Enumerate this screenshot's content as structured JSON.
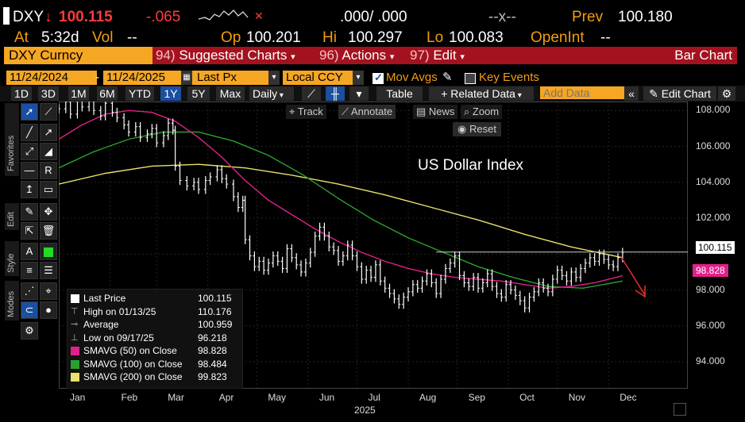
{
  "header": {
    "ticker": "DXY",
    "arrow": "↓",
    "price": "100.115",
    "change": "-.065",
    "bidask": ".000/ .000",
    "size": "--x--",
    "prev_label": "Prev",
    "prev_value": "100.180",
    "at_label": "At",
    "time": "5:32d",
    "vol_label": "Vol",
    "vol_value": "--",
    "op_label": "Op",
    "op_value": "100.201",
    "hi_label": "Hi",
    "hi_value": "100.297",
    "lo_label": "Lo",
    "lo_value": "100.083",
    "oi_label": "OpenInt",
    "oi_value": "--"
  },
  "function_bar": {
    "security": "DXY Curncy",
    "suggested_num": "94)",
    "suggested": "Suggested Charts",
    "actions_num": "96)",
    "actions": "Actions",
    "edit_num": "97)",
    "edit": "Edit",
    "chart_type": "Bar Chart"
  },
  "settings": {
    "start_date": "11/24/2024",
    "end_date": "11/24/2025",
    "field": "Last Px",
    "currency": "Local CCY",
    "mov_avgs": "Mov Avgs",
    "key_events": "Key Events"
  },
  "toolbar": {
    "periods": [
      "1D",
      "3D",
      "1M",
      "6M",
      "YTD",
      "1Y",
      "5Y",
      "Max"
    ],
    "selected_period": "1Y",
    "frequency": "Daily",
    "table": "Table",
    "related_data": "+ Related Data",
    "add_data_placeholder": "Add Data",
    "edit_chart": "Edit Chart"
  },
  "chart_tools": {
    "track": "Track",
    "annotate": "Annotate",
    "news": "News",
    "zoom": "Zoom",
    "reset": "Reset"
  },
  "side_tabs": [
    "Favorites",
    "Edit",
    "Style",
    "Modes"
  ],
  "chart_data": {
    "type": "bar",
    "title": "US Dollar Index",
    "xlabel": "2025",
    "x_ticks": [
      "Jan",
      "Feb",
      "Mar",
      "Apr",
      "May",
      "Jun",
      "Jul",
      "Aug",
      "Sep",
      "Oct",
      "Nov",
      "Dec"
    ],
    "y_ticks": [
      "108.000",
      "106.000",
      "104.000",
      "102.000",
      "98.000",
      "96.000",
      "94.000"
    ],
    "ylim": [
      92.5,
      108.5
    ],
    "grid": true,
    "legend_position": "bottom-left",
    "last_price_tag": "100.115",
    "sma50_tag": "98.828",
    "colors": {
      "price": "#ffffff",
      "sma50": "#e0218a",
      "sma100": "#2ca02c",
      "sma200": "#e8e06a",
      "trend_arrow": "#e03030"
    },
    "price_series": [
      [
        0,
        108.1
      ],
      [
        3,
        108.5
      ],
      [
        5,
        107.8
      ],
      [
        8,
        108.7
      ],
      [
        10,
        108.2
      ],
      [
        13,
        108.6
      ],
      [
        15,
        108.0
      ],
      [
        18,
        107.7
      ],
      [
        20,
        108.4
      ],
      [
        23,
        107.9
      ],
      [
        25,
        107.6
      ],
      [
        28,
        107.2
      ],
      [
        30,
        106.8
      ],
      [
        33,
        107.1
      ],
      [
        35,
        106.5
      ],
      [
        38,
        106.7
      ],
      [
        40,
        107.0
      ],
      [
        42,
        106.2
      ],
      [
        45,
        106.6
      ],
      [
        47,
        107.3
      ],
      [
        49,
        106.9
      ],
      [
        50,
        104.9
      ],
      [
        52,
        104.1
      ],
      [
        55,
        103.8
      ],
      [
        58,
        104.0
      ],
      [
        60,
        103.6
      ],
      [
        63,
        104.1
      ],
      [
        65,
        104.3
      ],
      [
        68,
        104.7
      ],
      [
        70,
        104.2
      ],
      [
        72,
        103.9
      ],
      [
        75,
        103.2
      ],
      [
        77,
        102.6
      ],
      [
        79,
        103.0
      ],
      [
        80,
        100.8
      ],
      [
        82,
        99.9
      ],
      [
        84,
        99.3
      ],
      [
        86,
        99.6
      ],
      [
        88,
        99.1
      ],
      [
        90,
        99.5
      ],
      [
        92,
        99.9
      ],
      [
        94,
        99.6
      ],
      [
        96,
        99.2
      ],
      [
        98,
        100.3
      ],
      [
        100,
        99.8
      ],
      [
        102,
        99.4
      ],
      [
        104,
        99.0
      ],
      [
        106,
        99.5
      ],
      [
        108,
        100.1
      ],
      [
        110,
        101.0
      ],
      [
        112,
        101.5
      ],
      [
        114,
        101.0
      ],
      [
        116,
        100.4
      ],
      [
        118,
        100.2
      ],
      [
        120,
        99.6
      ],
      [
        122,
        99.9
      ],
      [
        124,
        100.5
      ],
      [
        126,
        99.9
      ],
      [
        128,
        99.3
      ],
      [
        130,
        98.6
      ],
      [
        132,
        99.1
      ],
      [
        134,
        98.7
      ],
      [
        136,
        99.4
      ],
      [
        138,
        98.5
      ],
      [
        140,
        98.1
      ],
      [
        142,
        97.8
      ],
      [
        144,
        97.5
      ],
      [
        146,
        97.2
      ],
      [
        148,
        97.6
      ],
      [
        150,
        97.9
      ],
      [
        152,
        98.3
      ],
      [
        154,
        98.1
      ],
      [
        156,
        98.5
      ],
      [
        158,
        98.9
      ],
      [
        160,
        98.4
      ],
      [
        162,
        97.8
      ],
      [
        164,
        98.6
      ],
      [
        166,
        99.2
      ],
      [
        168,
        99.5
      ],
      [
        170,
        99.9
      ],
      [
        172,
        98.8
      ],
      [
        174,
        98.4
      ],
      [
        176,
        98.2
      ],
      [
        178,
        98.7
      ],
      [
        180,
        98.1
      ],
      [
        182,
        98.4
      ],
      [
        184,
        98.9
      ],
      [
        186,
        98.2
      ],
      [
        188,
        97.8
      ],
      [
        190,
        97.6
      ],
      [
        192,
        98.3
      ],
      [
        194,
        98.0
      ],
      [
        196,
        97.7
      ],
      [
        198,
        97.4
      ],
      [
        200,
        97.0
      ],
      [
        202,
        97.6
      ],
      [
        204,
        97.9
      ],
      [
        206,
        98.4
      ],
      [
        208,
        98.1
      ],
      [
        210,
        97.9
      ],
      [
        212,
        98.6
      ],
      [
        214,
        99.1
      ],
      [
        216,
        98.8
      ],
      [
        218,
        98.5
      ],
      [
        220,
        99.0
      ],
      [
        222,
        98.7
      ],
      [
        224,
        99.2
      ],
      [
        226,
        99.5
      ],
      [
        228,
        99.8
      ],
      [
        230,
        99.6
      ],
      [
        232,
        100.0
      ],
      [
        234,
        99.7
      ],
      [
        236,
        99.4
      ],
      [
        238,
        99.3
      ],
      [
        240,
        99.8
      ],
      [
        242,
        100.1
      ]
    ],
    "sma50": [
      [
        0,
        106.4
      ],
      [
        10,
        107.2
      ],
      [
        20,
        107.8
      ],
      [
        30,
        108.0
      ],
      [
        40,
        107.9
      ],
      [
        50,
        107.4
      ],
      [
        60,
        106.5
      ],
      [
        70,
        105.4
      ],
      [
        80,
        104.1
      ],
      [
        90,
        103.0
      ],
      [
        100,
        102.2
      ],
      [
        110,
        101.4
      ],
      [
        120,
        100.7
      ],
      [
        130,
        100.1
      ],
      [
        140,
        99.6
      ],
      [
        150,
        99.2
      ],
      [
        160,
        98.9
      ],
      [
        170,
        98.7
      ],
      [
        180,
        98.6
      ],
      [
        190,
        98.5
      ],
      [
        200,
        98.3
      ],
      [
        210,
        98.1
      ],
      [
        220,
        98.2
      ],
      [
        230,
        98.4
      ],
      [
        242,
        98.8
      ]
    ],
    "sma100": [
      [
        0,
        104.8
      ],
      [
        15,
        105.7
      ],
      [
        30,
        106.4
      ],
      [
        45,
        106.8
      ],
      [
        60,
        106.8
      ],
      [
        75,
        106.3
      ],
      [
        90,
        105.5
      ],
      [
        105,
        104.4
      ],
      [
        120,
        103.1
      ],
      [
        135,
        101.9
      ],
      [
        150,
        100.9
      ],
      [
        165,
        100.1
      ],
      [
        180,
        99.3
      ],
      [
        195,
        98.7
      ],
      [
        210,
        98.2
      ],
      [
        225,
        98.1
      ],
      [
        242,
        98.5
      ]
    ],
    "sma200": [
      [
        0,
        103.9
      ],
      [
        20,
        104.5
      ],
      [
        40,
        104.9
      ],
      [
        60,
        105.0
      ],
      [
        80,
        104.8
      ],
      [
        100,
        104.4
      ],
      [
        120,
        103.9
      ],
      [
        140,
        103.3
      ],
      [
        160,
        102.6
      ],
      [
        180,
        101.9
      ],
      [
        200,
        101.1
      ],
      [
        220,
        100.4
      ],
      [
        242,
        99.8
      ]
    ],
    "legend": [
      {
        "label": "Last Price",
        "value": "100.115",
        "marker": "square",
        "color": "#ffffff"
      },
      {
        "label": "High on 01/13/25",
        "value": "110.176",
        "marker": "high",
        "color": "#ffffff"
      },
      {
        "label": "Average",
        "value": "100.959",
        "marker": "avg",
        "color": "#ffffff"
      },
      {
        "label": "Low on 09/17/25",
        "value": "96.218",
        "marker": "low",
        "color": "#ffffff"
      },
      {
        "label": "SMAVG (50)  on Close",
        "value": "98.828",
        "marker": "square",
        "color": "#e0218a"
      },
      {
        "label": "SMAVG (100)  on Close",
        "value": "98.484",
        "marker": "square",
        "color": "#2ca02c"
      },
      {
        "label": "SMAVG (200)  on Close",
        "value": "99.823",
        "marker": "square",
        "color": "#e8e06a"
      }
    ]
  }
}
